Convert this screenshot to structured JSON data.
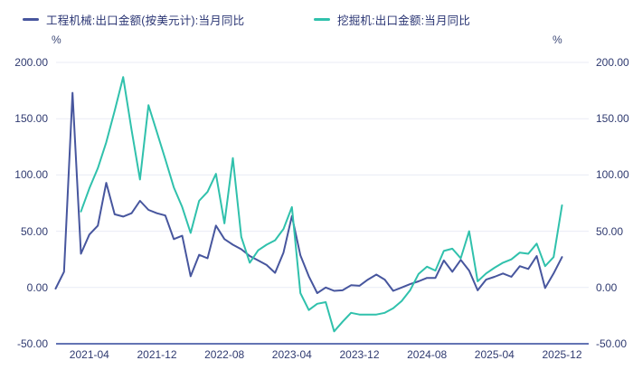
{
  "colors": {
    "series_machinery": "#47569E",
    "series_excavator": "#30C1AC",
    "legend_text": "#2B3674",
    "tick_text": "#2F3A70",
    "gridline": "#E9EBF5",
    "axis_line": "#6474B4",
    "background": "#FFFFFF"
  },
  "legend": [
    {
      "label": "工程机械:出口金额(按美元计):当月同比"
    },
    {
      "label": "挖掘机:出口金额:当月同比"
    }
  ],
  "axes": {
    "left_unit": "%",
    "right_unit": "%",
    "y_tick_labels": [
      "200.00",
      "150.00",
      "100.00",
      "50.00",
      "0.00",
      "-50.00"
    ],
    "x_tick_labels": [
      "2021-04",
      "2021-12",
      "2022-08",
      "2023-04",
      "2023-12",
      "2024-08",
      "2025-04",
      "2025-12"
    ]
  },
  "chart_data": {
    "type": "line",
    "title": "",
    "xlabel": "",
    "ylabel": "%",
    "ylim": [
      -50,
      200
    ],
    "grid": true,
    "legend_position": "top-left",
    "x": [
      "2020-12",
      "2021-01",
      "2021-02",
      "2021-03",
      "2021-04",
      "2021-05",
      "2021-06",
      "2021-07",
      "2021-08",
      "2021-09",
      "2021-10",
      "2021-11",
      "2021-12",
      "2022-01",
      "2022-02",
      "2022-03",
      "2022-04",
      "2022-05",
      "2022-06",
      "2022-07",
      "2022-08",
      "2022-09",
      "2022-10",
      "2022-11",
      "2022-12",
      "2023-01",
      "2023-02",
      "2023-03",
      "2023-04",
      "2023-05",
      "2023-06",
      "2023-07",
      "2023-08",
      "2023-09",
      "2023-10",
      "2023-11",
      "2023-12",
      "2024-01",
      "2024-02",
      "2024-03",
      "2024-04",
      "2024-05",
      "2024-06",
      "2024-07",
      "2024-08",
      "2024-09",
      "2024-10",
      "2024-11",
      "2024-12",
      "2025-01",
      "2025-02",
      "2025-03",
      "2025-04",
      "2025-05",
      "2025-06",
      "2025-07",
      "2025-08",
      "2025-09",
      "2025-10",
      "2025-11",
      "2025-12"
    ],
    "series": [
      {
        "name": "工程机械:出口金额(按美元计):当月同比",
        "color": "#47569E",
        "values": [
          -1,
          14,
          173,
          30,
          47,
          55,
          93,
          65,
          63,
          66,
          77,
          69,
          66,
          64,
          43,
          46,
          10,
          29,
          26,
          55,
          43,
          38,
          34,
          28,
          24,
          20,
          13,
          31,
          63.5,
          28.5,
          10,
          -5,
          0,
          -3,
          -2.5,
          2,
          1.5,
          7,
          11.5,
          7,
          -3,
          0,
          3,
          5.5,
          8.5,
          8.5,
          24,
          14,
          24.5,
          15,
          -2.5,
          7,
          9.5,
          12.5,
          9.5,
          19,
          16.5,
          28,
          -0.5,
          12.5,
          27
        ]
      },
      {
        "name": "挖掘机:出口金额:当月同比",
        "color": "#30C1AC",
        "values": [
          null,
          null,
          null,
          67.5,
          88,
          106,
          129,
          157,
          187,
          140,
          96,
          162,
          138,
          114,
          89,
          71.5,
          48.5,
          77,
          85,
          101,
          57,
          115,
          45,
          22,
          33,
          38,
          42,
          52,
          71.5,
          -5,
          -20,
          -14.5,
          -13,
          -39,
          -30.5,
          -22.5,
          -24,
          -24,
          -24,
          -22.5,
          -18.5,
          -12,
          -2.5,
          12,
          18.5,
          15,
          32.5,
          34.5,
          26,
          50,
          5.5,
          12.5,
          17.5,
          22,
          25,
          31,
          30,
          39,
          19,
          27,
          73
        ]
      }
    ]
  }
}
